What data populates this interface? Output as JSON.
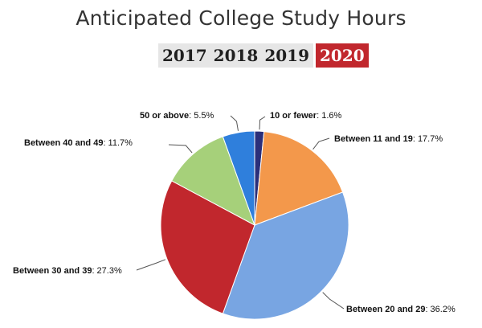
{
  "chart_data": {
    "type": "pie",
    "title": "Anticipated College Study Hours",
    "year_tabs": [
      {
        "label": "2017",
        "active": false
      },
      {
        "label": "2018",
        "active": false
      },
      {
        "label": "2019",
        "active": false
      },
      {
        "label": "2020",
        "active": true
      }
    ],
    "slices": [
      {
        "label": "10 or fewer",
        "value": 1.6,
        "value_label": "1.6%",
        "color": "#2b2f7a"
      },
      {
        "label": "Between 11 and 19",
        "value": 17.7,
        "value_label": "17.7%",
        "color": "#f3984b"
      },
      {
        "label": "Between 20 and 29",
        "value": 36.2,
        "value_label": "36.2%",
        "color": "#78a5e2"
      },
      {
        "label": "Between 30 and 39",
        "value": 27.3,
        "value_label": "27.3%",
        "color": "#c1272d"
      },
      {
        "label": "Between 40 and 49",
        "value": 11.7,
        "value_label": "11.7%",
        "color": "#a6d07a"
      },
      {
        "label": "50 or above",
        "value": 5.5,
        "value_label": "5.5%",
        "color": "#2f7fdc"
      }
    ],
    "start_angle_deg": 0,
    "direction": "clockwise",
    "legend": "none"
  }
}
